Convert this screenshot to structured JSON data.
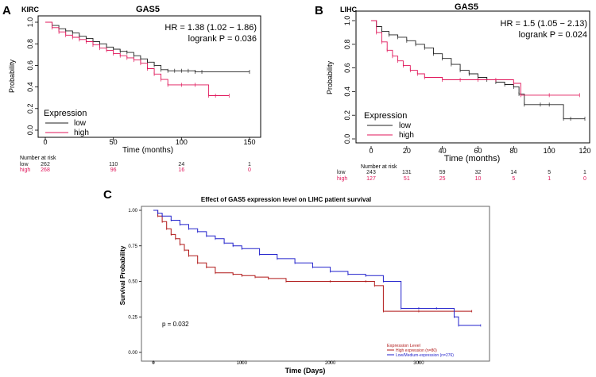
{
  "figure": {
    "panels": [
      {
        "letter": "A",
        "dataset": "KIRC",
        "gene": "GAS5",
        "hr_text": "HR = 1.38 (1.02 − 1.86)",
        "p_text": "logrank P = 0.036"
      },
      {
        "letter": "B",
        "dataset": "LIHC",
        "gene": "GAS5",
        "hr_text": "HR = 1.5 (1.05 − 2.13)",
        "p_text": "logrank P = 0.024"
      },
      {
        "letter": "C",
        "title": "Effect of GAS5 expression level on LIHC patient survival",
        "p_text": "p = 0.032"
      }
    ]
  },
  "colors": {
    "low": "#222222",
    "high": "#e0165a",
    "c_high": "#b01818",
    "c_low": "#2222cc"
  },
  "chart_data": [
    {
      "type": "line",
      "panel": "A",
      "title": "GAS5",
      "xlabel": "Time (months)",
      "ylabel": "Probability",
      "xlim": [
        0,
        150
      ],
      "ylim": [
        0,
        1
      ],
      "xticks": [
        0,
        50,
        100,
        150
      ],
      "yticks": [
        "0.0",
        "0.2",
        "0.4",
        "0.6",
        "0.8",
        "1.0"
      ],
      "legend": {
        "title": "Expression",
        "entries": [
          "low",
          "high"
        ],
        "position": "bottom-left"
      },
      "series": [
        {
          "name": "low",
          "color": "#222222",
          "x": [
            0,
            5,
            10,
            15,
            20,
            25,
            30,
            35,
            40,
            45,
            50,
            55,
            60,
            65,
            70,
            75,
            80,
            85,
            90,
            95,
            100,
            105,
            110,
            115,
            150
          ],
          "y": [
            1.0,
            0.97,
            0.94,
            0.92,
            0.9,
            0.87,
            0.85,
            0.82,
            0.8,
            0.77,
            0.75,
            0.73,
            0.72,
            0.69,
            0.66,
            0.63,
            0.6,
            0.56,
            0.55,
            0.55,
            0.55,
            0.55,
            0.54,
            0.54,
            0.54
          ]
        },
        {
          "name": "high",
          "color": "#e0165a",
          "x": [
            0,
            5,
            10,
            15,
            20,
            25,
            30,
            35,
            40,
            45,
            50,
            55,
            60,
            65,
            70,
            75,
            80,
            85,
            90,
            100,
            110,
            120,
            125,
            135
          ],
          "y": [
            1.0,
            0.95,
            0.91,
            0.88,
            0.86,
            0.84,
            0.82,
            0.79,
            0.76,
            0.74,
            0.71,
            0.69,
            0.67,
            0.65,
            0.62,
            0.57,
            0.52,
            0.47,
            0.42,
            0.42,
            0.42,
            0.32,
            0.32,
            0.32
          ]
        }
      ],
      "risk_table": {
        "label": "Number at risk",
        "rows": [
          {
            "name": "low",
            "values": [
              "262",
              "110",
              "24",
              "1"
            ]
          },
          {
            "name": "high",
            "values": [
              "268",
              "96",
              "16",
              "0"
            ]
          }
        ]
      }
    },
    {
      "type": "line",
      "panel": "B",
      "title": "GAS5",
      "xlabel": "Time (months)",
      "ylabel": "Probability",
      "xlim": [
        0,
        120
      ],
      "ylim": [
        0,
        1
      ],
      "xticks": [
        0,
        20,
        40,
        60,
        80,
        100,
        120
      ],
      "yticks": [
        "0.0",
        "0.2",
        "0.4",
        "0.6",
        "0.8",
        "1.0"
      ],
      "legend": {
        "title": "Expression",
        "entries": [
          "low",
          "high"
        ],
        "position": "bottom-left"
      },
      "series": [
        {
          "name": "low",
          "color": "#222222",
          "x": [
            0,
            3,
            6,
            10,
            15,
            20,
            25,
            30,
            35,
            40,
            45,
            50,
            55,
            60,
            65,
            70,
            75,
            80,
            83,
            86,
            95,
            100,
            108,
            112,
            120
          ],
          "y": [
            1.0,
            0.95,
            0.91,
            0.88,
            0.86,
            0.83,
            0.8,
            0.77,
            0.72,
            0.68,
            0.63,
            0.58,
            0.55,
            0.52,
            0.5,
            0.48,
            0.46,
            0.44,
            0.38,
            0.29,
            0.29,
            0.29,
            0.17,
            0.17,
            0.17
          ]
        },
        {
          "name": "high",
          "color": "#e0165a",
          "x": [
            0,
            3,
            6,
            9,
            12,
            15,
            18,
            22,
            26,
            30,
            40,
            50,
            60,
            70,
            80,
            84,
            100,
            117
          ],
          "y": [
            1.0,
            0.9,
            0.82,
            0.75,
            0.7,
            0.66,
            0.62,
            0.58,
            0.55,
            0.52,
            0.5,
            0.5,
            0.5,
            0.5,
            0.47,
            0.37,
            0.37,
            0.37
          ]
        }
      ],
      "risk_table": {
        "label": "Number at risk",
        "rows": [
          {
            "name": "low",
            "values": [
              "243",
              "131",
              "59",
              "32",
              "14",
              "5",
              "1"
            ]
          },
          {
            "name": "high",
            "values": [
              "127",
              "51",
              "25",
              "10",
              "5",
              "1",
              "0"
            ]
          }
        ]
      }
    },
    {
      "type": "line",
      "panel": "C",
      "title": "Effect of GAS5 expression level on LIHC patient survival",
      "xlabel": "Time (Days)",
      "ylabel": "Survival Probability",
      "xlim": [
        0,
        3800
      ],
      "ylim": [
        0,
        1
      ],
      "xticks": [
        0,
        1000,
        2000,
        3000
      ],
      "yticks": [
        "0.00",
        "0.25",
        "0.50",
        "0.75",
        "1.00"
      ],
      "legend": {
        "title": "Expression Level",
        "entries": [
          "High expression (n=80)",
          "Low/Medium-expression (n=276)"
        ],
        "position": "bottom-right"
      },
      "series": [
        {
          "name": "High expression (n=80)",
          "color": "#b01818",
          "x": [
            0,
            50,
            100,
            150,
            200,
            250,
            300,
            350,
            400,
            500,
            600,
            700,
            900,
            1000,
            1150,
            1300,
            1500,
            2000,
            2400,
            2500,
            2600,
            3000,
            3600
          ],
          "y": [
            1.0,
            0.96,
            0.92,
            0.87,
            0.83,
            0.8,
            0.76,
            0.72,
            0.68,
            0.63,
            0.6,
            0.56,
            0.55,
            0.54,
            0.53,
            0.52,
            0.5,
            0.5,
            0.5,
            0.47,
            0.29,
            0.29,
            0.29
          ]
        },
        {
          "name": "Low/Medium-expression (n=276)",
          "color": "#2222cc",
          "x": [
            0,
            50,
            100,
            200,
            300,
            400,
            500,
            600,
            700,
            800,
            900,
            1000,
            1200,
            1400,
            1600,
            1800,
            2000,
            2200,
            2400,
            2600,
            2800,
            3000,
            3200,
            3400,
            3450,
            3700
          ],
          "y": [
            1.0,
            0.98,
            0.96,
            0.93,
            0.9,
            0.87,
            0.85,
            0.82,
            0.8,
            0.77,
            0.75,
            0.73,
            0.69,
            0.66,
            0.63,
            0.6,
            0.57,
            0.55,
            0.54,
            0.5,
            0.31,
            0.31,
            0.31,
            0.25,
            0.19,
            0.19
          ]
        }
      ]
    }
  ]
}
